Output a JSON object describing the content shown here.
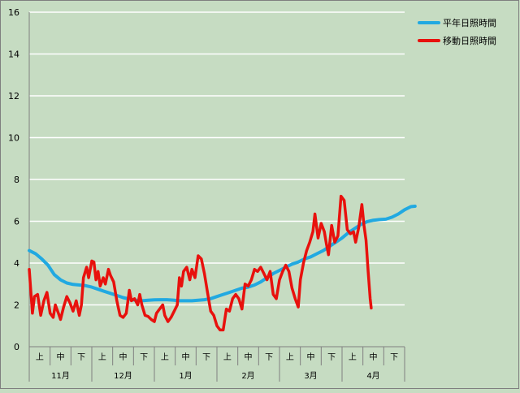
{
  "chart_data": {
    "type": "line",
    "ylim": [
      0,
      16
    ],
    "y_ticks": [
      "0",
      "2",
      "4",
      "6",
      "8",
      "10",
      "12",
      "14",
      "16"
    ],
    "grid": "horizontal",
    "legend_position": "top-right",
    "x_months": [
      "11月",
      "12月",
      "1月",
      "2月",
      "3月",
      "4月"
    ],
    "x_subdivisions": [
      "上",
      "中",
      "下"
    ],
    "x_range_days": [
      0,
      180
    ],
    "series": [
      {
        "name": "平年日照時間",
        "color": "#21a9e1",
        "points": [
          [
            0,
            4.6
          ],
          [
            3,
            4.45
          ],
          [
            6,
            4.2
          ],
          [
            9,
            3.9
          ],
          [
            12,
            3.45
          ],
          [
            15,
            3.2
          ],
          [
            18,
            3.05
          ],
          [
            21,
            2.98
          ],
          [
            24,
            2.95
          ],
          [
            27,
            2.92
          ],
          [
            30,
            2.85
          ],
          [
            33,
            2.75
          ],
          [
            36,
            2.65
          ],
          [
            39,
            2.55
          ],
          [
            42,
            2.45
          ],
          [
            45,
            2.35
          ],
          [
            48,
            2.28
          ],
          [
            51,
            2.22
          ],
          [
            54,
            2.2
          ],
          [
            57,
            2.22
          ],
          [
            60,
            2.24
          ],
          [
            63,
            2.25
          ],
          [
            66,
            2.25
          ],
          [
            69,
            2.23
          ],
          [
            72,
            2.2
          ],
          [
            75,
            2.2
          ],
          [
            78,
            2.2
          ],
          [
            81,
            2.22
          ],
          [
            84,
            2.25
          ],
          [
            87,
            2.3
          ],
          [
            90,
            2.4
          ],
          [
            93,
            2.5
          ],
          [
            96,
            2.6
          ],
          [
            99,
            2.7
          ],
          [
            102,
            2.8
          ],
          [
            105,
            2.85
          ],
          [
            108,
            2.95
          ],
          [
            111,
            3.1
          ],
          [
            114,
            3.3
          ],
          [
            117,
            3.5
          ],
          [
            120,
            3.65
          ],
          [
            123,
            3.8
          ],
          [
            126,
            3.95
          ],
          [
            129,
            4.05
          ],
          [
            132,
            4.2
          ],
          [
            135,
            4.3
          ],
          [
            138,
            4.45
          ],
          [
            141,
            4.6
          ],
          [
            144,
            4.8
          ],
          [
            147,
            5.0
          ],
          [
            150,
            5.2
          ],
          [
            153,
            5.45
          ],
          [
            156,
            5.65
          ],
          [
            159,
            5.85
          ],
          [
            162,
            5.98
          ],
          [
            165,
            6.05
          ],
          [
            168,
            6.08
          ],
          [
            171,
            6.1
          ],
          [
            174,
            6.2
          ],
          [
            177,
            6.35
          ],
          [
            180,
            6.55
          ],
          [
            183,
            6.7
          ],
          [
            185,
            6.72
          ]
        ]
      },
      {
        "name": "移動日照時間",
        "color": "#e8110d",
        "points": [
          [
            0,
            3.7
          ],
          [
            1.5,
            1.6
          ],
          [
            2.5,
            2.4
          ],
          [
            4,
            2.5
          ],
          [
            5.5,
            1.5
          ],
          [
            7,
            2.2
          ],
          [
            8.5,
            2.6
          ],
          [
            10,
            1.6
          ],
          [
            11.5,
            1.4
          ],
          [
            12.5,
            2.0
          ],
          [
            14,
            1.6
          ],
          [
            15,
            1.3
          ],
          [
            16.5,
            1.9
          ],
          [
            18,
            2.4
          ],
          [
            19.5,
            2.1
          ],
          [
            21,
            1.7
          ],
          [
            22.5,
            2.2
          ],
          [
            24,
            1.5
          ],
          [
            25,
            2.0
          ],
          [
            26,
            3.3
          ],
          [
            27.5,
            3.8
          ],
          [
            28.5,
            3.3
          ],
          [
            30,
            4.1
          ],
          [
            31,
            4.05
          ],
          [
            32,
            3.2
          ],
          [
            33,
            3.6
          ],
          [
            34,
            2.9
          ],
          [
            35.5,
            3.3
          ],
          [
            36.5,
            3.0
          ],
          [
            38,
            3.7
          ],
          [
            39,
            3.4
          ],
          [
            40.5,
            3.1
          ],
          [
            42,
            2.2
          ],
          [
            43.5,
            1.5
          ],
          [
            45,
            1.4
          ],
          [
            46.5,
            1.6
          ],
          [
            48,
            2.7
          ],
          [
            49,
            2.2
          ],
          [
            50.5,
            2.3
          ],
          [
            52,
            2.0
          ],
          [
            53,
            2.5
          ],
          [
            54,
            2.0
          ],
          [
            55.5,
            1.5
          ],
          [
            57,
            1.45
          ],
          [
            58.5,
            1.3
          ],
          [
            60,
            1.2
          ],
          [
            61,
            1.6
          ],
          [
            62.5,
            1.8
          ],
          [
            64,
            2.0
          ],
          [
            65,
            1.5
          ],
          [
            66.5,
            1.2
          ],
          [
            68,
            1.4
          ],
          [
            69.5,
            1.7
          ],
          [
            71,
            2.0
          ],
          [
            72,
            3.3
          ],
          [
            73,
            2.9
          ],
          [
            74,
            3.6
          ],
          [
            75.5,
            3.8
          ],
          [
            77,
            3.2
          ],
          [
            78,
            3.7
          ],
          [
            79.5,
            3.3
          ],
          [
            81,
            4.35
          ],
          [
            82.5,
            4.2
          ],
          [
            84,
            3.5
          ],
          [
            85.5,
            2.6
          ],
          [
            87,
            1.7
          ],
          [
            88.5,
            1.5
          ],
          [
            90,
            1.0
          ],
          [
            91.5,
            0.8
          ],
          [
            93,
            0.8
          ],
          [
            94.5,
            1.8
          ],
          [
            96,
            1.7
          ],
          [
            97.5,
            2.3
          ],
          [
            99,
            2.5
          ],
          [
            100.5,
            2.3
          ],
          [
            102,
            1.8
          ],
          [
            103.5,
            3.0
          ],
          [
            105,
            2.9
          ],
          [
            106.5,
            3.2
          ],
          [
            108,
            3.7
          ],
          [
            109.5,
            3.6
          ],
          [
            111,
            3.8
          ],
          [
            112.5,
            3.5
          ],
          [
            114,
            3.2
          ],
          [
            115.5,
            3.6
          ],
          [
            117,
            2.5
          ],
          [
            118.5,
            2.3
          ],
          [
            120,
            3.2
          ],
          [
            121.5,
            3.6
          ],
          [
            123,
            3.9
          ],
          [
            124.5,
            3.6
          ],
          [
            126,
            2.8
          ],
          [
            127.5,
            2.3
          ],
          [
            129,
            1.9
          ],
          [
            130,
            3.2
          ],
          [
            131.5,
            4.0
          ],
          [
            133,
            4.6
          ],
          [
            134.5,
            5.0
          ],
          [
            136,
            5.5
          ],
          [
            137,
            6.35
          ],
          [
            138.5,
            5.2
          ],
          [
            140,
            5.9
          ],
          [
            141.5,
            5.5
          ],
          [
            142.5,
            4.9
          ],
          [
            143.5,
            4.4
          ],
          [
            145,
            5.8
          ],
          [
            146.5,
            5.0
          ],
          [
            148,
            5.3
          ],
          [
            149.5,
            7.2
          ],
          [
            151,
            7.0
          ],
          [
            152.5,
            5.6
          ],
          [
            154,
            5.4
          ],
          [
            155.5,
            5.5
          ],
          [
            156.5,
            5.0
          ],
          [
            158,
            5.7
          ],
          [
            159.5,
            6.8
          ],
          [
            160.5,
            5.8
          ],
          [
            161.5,
            5.1
          ],
          [
            162.5,
            3.6
          ],
          [
            163.5,
            2.3
          ],
          [
            164,
            1.85
          ]
        ]
      }
    ]
  }
}
